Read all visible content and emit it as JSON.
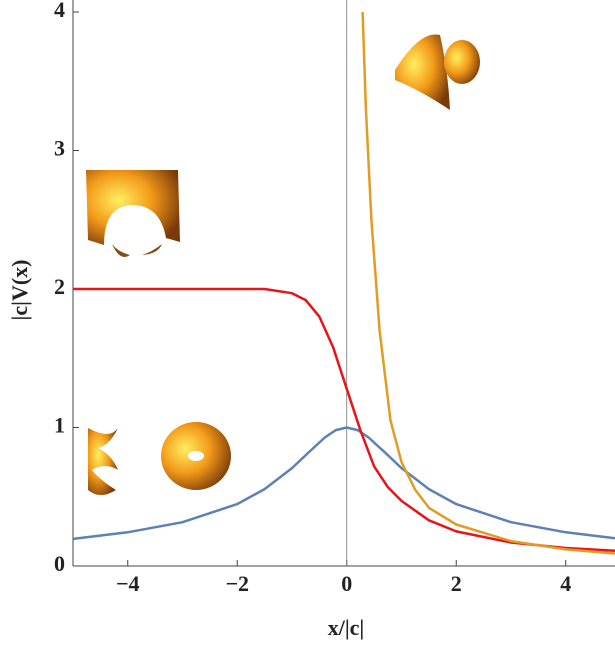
{
  "chart_data": {
    "type": "line",
    "xlabel": "x/|c|",
    "ylabel": "|c|V(x)",
    "xlim": [
      -5,
      4.9
    ],
    "ylim": [
      0,
      4
    ],
    "xticks": [
      {
        "value": -4,
        "label": "−4"
      },
      {
        "value": -2,
        "label": "−2"
      },
      0,
      2,
      4
    ],
    "yticks": [
      0,
      1,
      2,
      3,
      4
    ],
    "series": [
      {
        "color": "#5e81b5",
        "x": [
          -5,
          -4,
          -3,
          -2,
          -1.5,
          -1,
          -0.7,
          -0.4,
          -0.2,
          0,
          0.2,
          0.4,
          0.7,
          1,
          1.5,
          2,
          3,
          4,
          4.9
        ],
        "values": [
          0.196,
          0.243,
          0.316,
          0.447,
          0.555,
          0.707,
          0.819,
          0.928,
          0.981,
          1,
          0.981,
          0.928,
          0.819,
          0.707,
          0.555,
          0.447,
          0.316,
          0.243,
          0.2
        ]
      },
      {
        "color": "#e8141b",
        "x": [
          -5,
          -1.5,
          -1,
          -0.75,
          -0.5,
          -0.25,
          0,
          0.25,
          0.5,
          0.75,
          1,
          1.5,
          2,
          3,
          4,
          4.9
        ],
        "values": [
          2,
          2,
          1.97,
          1.92,
          1.8,
          1.58,
          1.28,
          0.98,
          0.72,
          0.57,
          0.47,
          0.33,
          0.25,
          0.17,
          0.13,
          0.11
        ]
      },
      {
        "color": "#e19c24",
        "x": [
          0.29,
          0.35,
          0.45,
          0.6,
          0.8,
          1,
          1.25,
          1.5,
          2,
          3,
          4,
          4.9
        ],
        "values": [
          4,
          3.3,
          2.5,
          1.7,
          1.05,
          0.75,
          0.55,
          0.42,
          0.3,
          0.18,
          0.12,
          0.09
        ]
      }
    ]
  }
}
